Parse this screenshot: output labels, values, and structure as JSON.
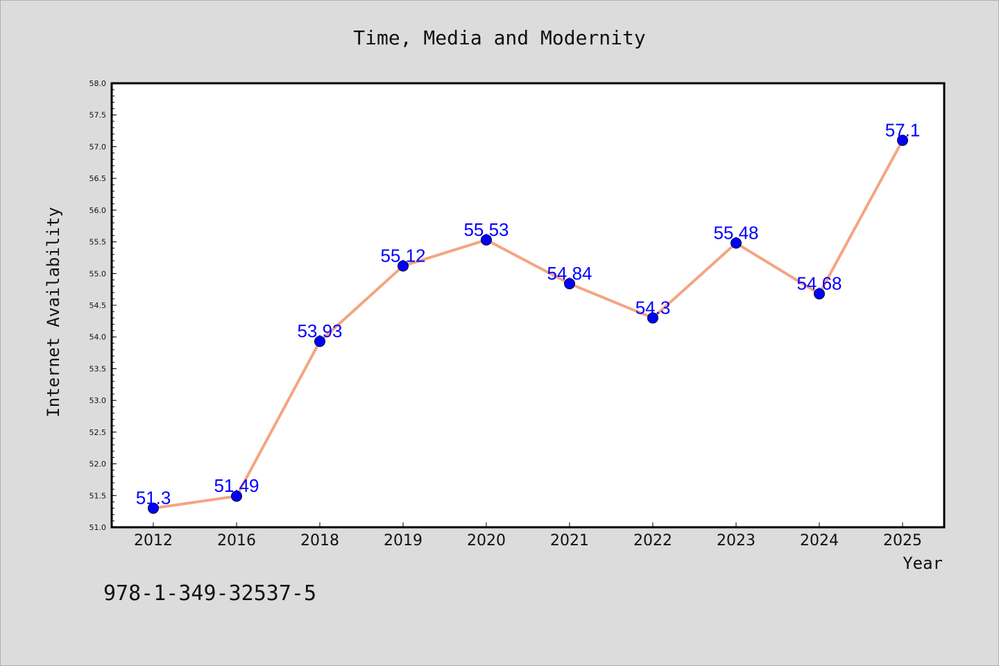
{
  "chart_data": {
    "type": "line",
    "title": "Time, Media and Modernity",
    "xlabel": "Year",
    "ylabel": "Internet Availability",
    "categories": [
      "2012",
      "2016",
      "2018",
      "2019",
      "2020",
      "2021",
      "2022",
      "2023",
      "2024",
      "2025"
    ],
    "series": [
      {
        "values": [
          51.3,
          51.49,
          53.93,
          55.12,
          55.53,
          54.84,
          54.3,
          55.48,
          54.68,
          57.1
        ]
      }
    ],
    "data_labels": [
      "51.3",
      "51.49",
      "53.93",
      "55.12",
      "55.53",
      "54.84",
      "54.3",
      "55.48",
      "54.68",
      "57.1"
    ],
    "ylim": [
      51.0,
      58.0
    ],
    "yticks": [
      "51.0",
      "51.5",
      "52.0",
      "52.5",
      "53.0",
      "53.5",
      "54.0",
      "54.5",
      "55.0",
      "55.5",
      "56.0",
      "56.5",
      "57.0",
      "57.5",
      "58.0"
    ],
    "grid": false,
    "colors": {
      "line": "#f4a582",
      "marker": "#0000ff",
      "label": "#0000ff",
      "background": "#dcdcdc",
      "plot_background": "#ffffff"
    }
  },
  "footer": {
    "isbn": "978-1-349-32537-5"
  }
}
